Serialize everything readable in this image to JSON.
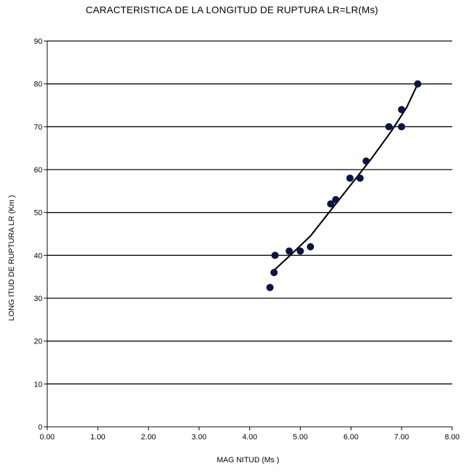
{
  "chart_data": {
    "type": "scatter",
    "title": "CARACTERISTICA DE LA LONGITUD DE RUPTURA  LR=LR(Ms)",
    "xlabel": "MAG NITUD (Ms )",
    "ylabel": "LONG ITUD DE RUPTURA LR (Km )",
    "xlim": [
      0,
      8
    ],
    "ylim": [
      0,
      90
    ],
    "xticks": [
      "0.00",
      "1.00",
      "2.00",
      "3.00",
      "4.00",
      "5.00",
      "6.00",
      "7.00",
      "8.00"
    ],
    "yticks": [
      "0",
      "10",
      "20",
      "30",
      "40",
      "50",
      "60",
      "70",
      "80",
      "90"
    ],
    "grid": "horizontal",
    "points": [
      {
        "x": 4.4,
        "y": 32.5
      },
      {
        "x": 4.48,
        "y": 36
      },
      {
        "x": 4.5,
        "y": 40
      },
      {
        "x": 4.78,
        "y": 41
      },
      {
        "x": 5.0,
        "y": 41
      },
      {
        "x": 5.2,
        "y": 42
      },
      {
        "x": 5.6,
        "y": 52
      },
      {
        "x": 5.7,
        "y": 53
      },
      {
        "x": 5.98,
        "y": 58
      },
      {
        "x": 6.18,
        "y": 58
      },
      {
        "x": 6.3,
        "y": 62
      },
      {
        "x": 6.75,
        "y": 70
      },
      {
        "x": 7.0,
        "y": 70
      },
      {
        "x": 7.0,
        "y": 74
      },
      {
        "x": 7.32,
        "y": 80
      }
    ],
    "trendline": {
      "x": [
        4.48,
        4.8,
        5.2,
        5.6,
        6.0,
        6.4,
        6.8,
        7.1,
        7.32
      ],
      "y": [
        36.5,
        40.0,
        44.5,
        50.5,
        56.5,
        62.5,
        69.0,
        74.5,
        80.0
      ]
    },
    "colors": {
      "marker": "#0b1447",
      "line": "#000000",
      "grid": "#000000"
    }
  }
}
